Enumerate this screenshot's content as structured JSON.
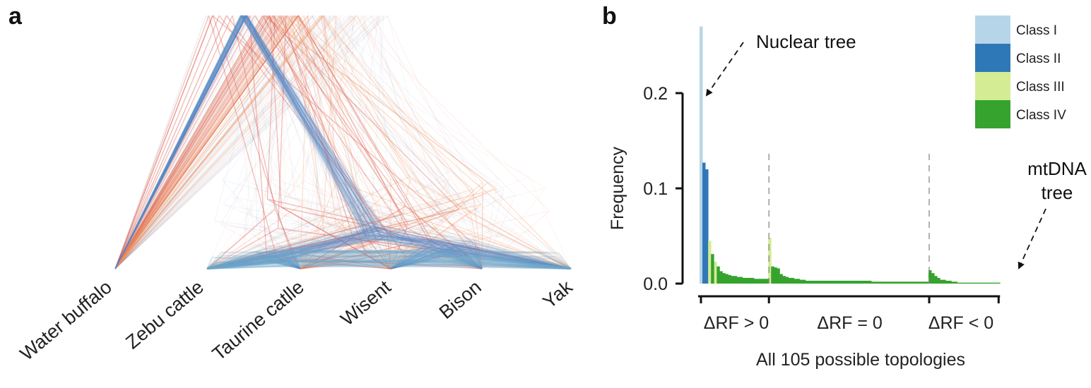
{
  "panels": {
    "a": {
      "letter": "a",
      "species": [
        "Water buffalo",
        "Zebu cattle",
        "Taurine catlle",
        "Wisent",
        "Bison",
        "Yak"
      ]
    },
    "b": {
      "letter": "b"
    }
  },
  "colors": {
    "class_i": "#b7d5e8",
    "class_ii": "#2f78b7",
    "class_iii": "#d4ec94",
    "class_iv": "#36a32e",
    "red_lines": "#d8443a",
    "orange_lines": "#f0905a",
    "blue_lines": "#5a82c4",
    "light_blue_lines": "#6aa6cc"
  },
  "chart_data": [
    {
      "type": "diagram",
      "description_kind": "cloudogram",
      "species": [
        "Water buffalo",
        "Zebu cattle",
        "Taurine catlle",
        "Wisent",
        "Bison",
        "Yak"
      ]
    },
    {
      "type": "bar",
      "xlabel": "All 105 possible topologies",
      "ylabel": "Frequency",
      "ylim": [
        0,
        0.27
      ],
      "yticks": [
        "0.0",
        "0.1",
        "0.2"
      ],
      "ytick_values": [
        0.0,
        0.1,
        0.2
      ],
      "xtick_labels": [
        "ΔRF > 0",
        "ΔRF = 0",
        "ΔRF < 0"
      ],
      "xtick_positions": [
        1,
        35,
        106
      ],
      "n_topologies": 105,
      "legend": {
        "placement": "top-right",
        "entries": [
          "Class I",
          "Class II",
          "Class III",
          "Class IV"
        ]
      },
      "annotations": [
        {
          "text": "Nuclear tree",
          "target_topology": 1
        },
        {
          "text": "mtDNA",
          "text2": "tree",
          "target_topology": 81
        }
      ],
      "series": [
        {
          "name": "Class I",
          "x": [
            1
          ],
          "values": [
            0.27
          ]
        },
        {
          "name": "Class II",
          "x": [
            2,
            3
          ],
          "values": [
            0.127,
            0.12
          ]
        },
        {
          "name": "Class III",
          "x": [
            4,
            6,
            25
          ],
          "values": [
            0.045,
            0.023,
            0.048
          ]
        },
        {
          "name": "Class IV",
          "x": [
            5,
            7,
            8,
            9,
            10,
            11,
            12,
            13,
            14,
            15,
            16,
            17,
            18,
            19,
            20,
            21,
            22,
            23,
            24,
            26,
            27,
            28,
            29,
            30,
            31,
            32,
            33,
            34,
            35,
            36,
            37,
            38,
            39,
            40,
            41,
            42,
            43,
            44,
            45,
            46,
            47,
            48,
            49,
            50,
            51,
            52,
            53,
            54,
            55,
            56,
            57,
            58,
            59,
            60,
            61,
            62,
            63,
            64,
            65,
            66,
            67,
            68,
            69,
            70,
            71,
            72,
            73,
            74,
            75,
            76,
            77,
            78,
            79,
            80,
            81,
            82,
            83,
            84,
            85,
            86,
            87,
            88,
            89,
            90,
            91,
            92,
            93,
            94,
            95,
            96,
            97,
            98,
            99,
            100,
            101,
            102,
            103,
            104,
            105
          ],
          "values": [
            0.031,
            0.018,
            0.013,
            0.011,
            0.01,
            0.009,
            0.008,
            0.008,
            0.007,
            0.007,
            0.006,
            0.006,
            0.006,
            0.006,
            0.005,
            0.005,
            0.005,
            0.005,
            0.005,
            0.018,
            0.017,
            0.016,
            0.01,
            0.008,
            0.007,
            0.006,
            0.006,
            0.005,
            0.005,
            0.004,
            0.004,
            0.003,
            0.003,
            0.003,
            0.003,
            0.003,
            0.003,
            0.003,
            0.003,
            0.003,
            0.003,
            0.003,
            0.003,
            0.003,
            0.003,
            0.003,
            0.003,
            0.003,
            0.003,
            0.003,
            0.003,
            0.003,
            0.003,
            0.003,
            0.002,
            0.002,
            0.002,
            0.002,
            0.002,
            0.002,
            0.002,
            0.002,
            0.002,
            0.002,
            0.002,
            0.002,
            0.002,
            0.002,
            0.002,
            0.002,
            0.002,
            0.002,
            0.002,
            0.002,
            0.014,
            0.011,
            0.008,
            0.006,
            0.004,
            0.004,
            0.003,
            0.003,
            0.002,
            0.002,
            0.001,
            0.001,
            0.001,
            0.001,
            0.001,
            0.001,
            0.001,
            0.001,
            0.001,
            0.001,
            0.001,
            0.001,
            0.001,
            0.001,
            0.001
          ]
        }
      ]
    }
  ]
}
